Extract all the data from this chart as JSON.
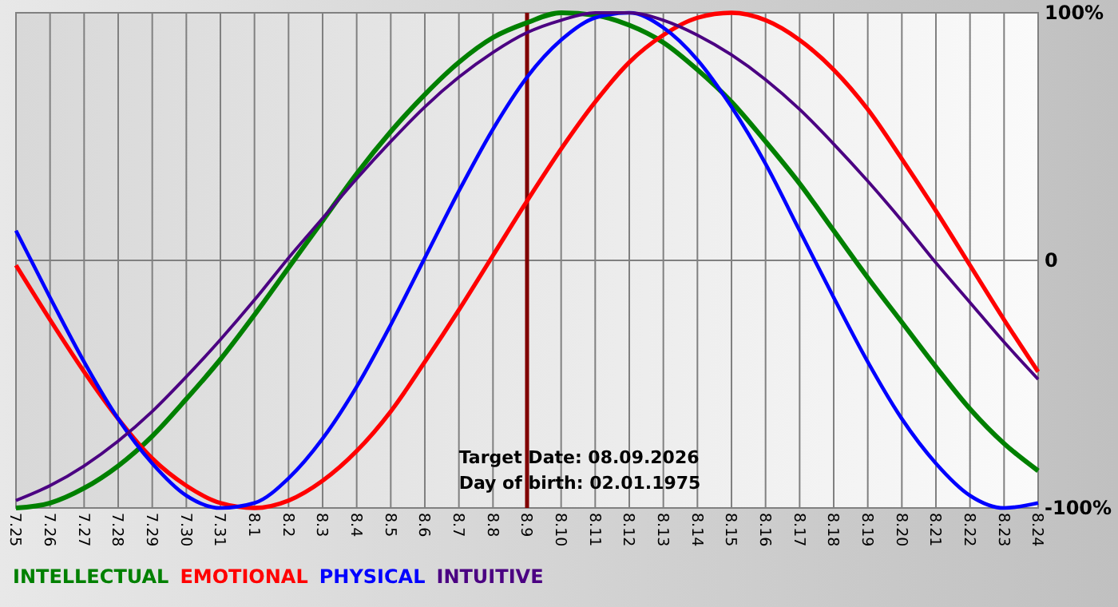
{
  "chart_data": {
    "type": "line",
    "categories": [
      "7.25",
      "7.26",
      "7.27",
      "7.28",
      "7.29",
      "7.30",
      "7.31",
      "8.1",
      "8.2",
      "8.3",
      "8.4",
      "8.5",
      "8.6",
      "8.7",
      "8.8",
      "8.9",
      "8.10",
      "8.11",
      "8.12",
      "8.13",
      "8.14",
      "8.15",
      "8.16",
      "8.17",
      "8.18",
      "8.19",
      "8.20",
      "8.21",
      "8.22",
      "8.23",
      "8.24"
    ],
    "series": [
      {
        "name": "INTELLECTUAL",
        "color": "#008000",
        "values": [
          -100,
          -98,
          -92,
          -83,
          -71,
          -56,
          -40,
          -22,
          -3,
          16,
          35,
          52,
          67,
          80,
          90,
          96,
          100,
          99,
          95,
          88,
          77,
          64,
          48,
          31,
          12,
          -7,
          -25,
          -43,
          -60,
          -74,
          -85
        ]
      },
      {
        "name": "EMOTIONAL",
        "color": "#ff0000",
        "values": [
          -2,
          -24,
          -45,
          -64,
          -80,
          -91,
          -98,
          -100,
          -97,
          -89,
          -77,
          -61,
          -41,
          -20,
          2,
          24,
          45,
          64,
          80,
          91,
          98,
          100,
          97,
          89,
          77,
          61,
          41,
          20,
          -2,
          -24,
          -45
        ]
      },
      {
        "name": "PHYSICAL",
        "color": "#0000ff",
        "values": [
          12,
          -15,
          -41,
          -64,
          -82,
          -95,
          -100,
          -98,
          -88,
          -72,
          -51,
          -26,
          1,
          28,
          53,
          74,
          89,
          98,
          100,
          94,
          81,
          62,
          39,
          12,
          -15,
          -41,
          -64,
          -82,
          -95,
          -100,
          -98
        ]
      },
      {
        "name": "INTUITIVE",
        "color": "#4b0082",
        "values": [
          -97,
          -91,
          -83,
          -73,
          -61,
          -47,
          -32,
          -16,
          1,
          17,
          33,
          48,
          62,
          74,
          84,
          92,
          97,
          100,
          100,
          97,
          91,
          83,
          73,
          61,
          47,
          32,
          16,
          -1,
          -17,
          -33,
          -48
        ]
      }
    ],
    "ylim": [
      -100,
      100
    ],
    "yticks": [
      {
        "value": -100,
        "label": "-100%"
      },
      0,
      {
        "value": 100,
        "label": "100%"
      }
    ],
    "grid": true,
    "legend": "bottom left",
    "ref_lines": [
      {
        "axis": "x",
        "value": "8.9",
        "color": "#800000"
      }
    ],
    "annotations": [
      "Target Date: 08.09.2026",
      "Day of birth: 02.01.1975"
    ]
  }
}
